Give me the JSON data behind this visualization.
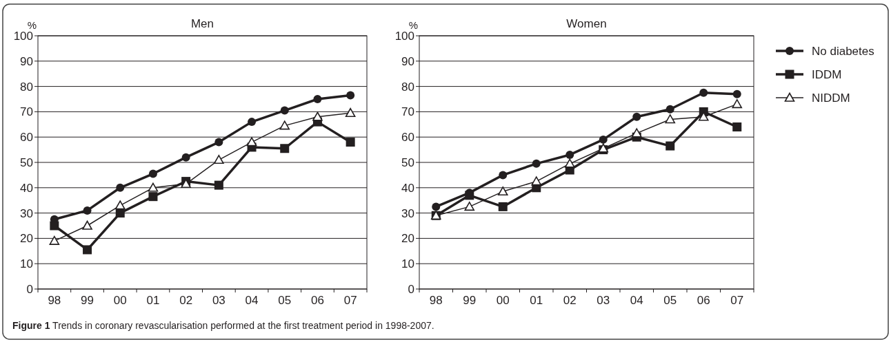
{
  "chart_data": [
    {
      "type": "line",
      "title": "Men",
      "ylabel": "%",
      "categories": [
        "98",
        "99",
        "00",
        "01",
        "02",
        "03",
        "04",
        "05",
        "06",
        "07"
      ],
      "ylim": [
        0,
        100
      ],
      "yticks": [
        0,
        10,
        20,
        30,
        40,
        50,
        60,
        70,
        80,
        90,
        100
      ],
      "grid": "y",
      "legend": false,
      "series": [
        {
          "color": "#231f20",
          "marker": "circle",
          "values": [
            27.5,
            31,
            40,
            45.5,
            52,
            58,
            66,
            70.5,
            75,
            76.5
          ]
        },
        {
          "color": "#231f20",
          "marker": "square",
          "values": [
            25,
            15.5,
            30,
            36.5,
            42.5,
            41,
            56,
            55.5,
            66,
            58
          ]
        },
        {
          "color": "#231f20",
          "marker": "triangle",
          "values": [
            19,
            25,
            33,
            40,
            41.5,
            51,
            58,
            64.5,
            68,
            69.5
          ]
        }
      ],
      "annotations": [
        "Figure 1 Trends in coronary revascularisation performed at the first treatment period in 1998-2007."
      ]
    },
    {
      "type": "line",
      "title": "Women",
      "ylabel": "%",
      "categories": [
        "98",
        "99",
        "00",
        "01",
        "02",
        "03",
        "04",
        "05",
        "06",
        "07"
      ],
      "ylim": [
        0,
        100
      ],
      "yticks": [
        0,
        10,
        20,
        30,
        40,
        50,
        60,
        70,
        80,
        90,
        100
      ],
      "grid": "y",
      "legend": "right",
      "series": [
        {
          "name": "No diabetes",
          "color": "#231f20",
          "marker": "circle",
          "values": [
            32.5,
            38,
            45,
            49.5,
            53,
            59,
            68,
            71,
            77.5,
            77
          ]
        },
        {
          "name": "IDDM",
          "color": "#231f20",
          "marker": "square",
          "values": [
            29,
            37,
            32.5,
            40,
            47,
            55,
            60,
            56.5,
            70,
            64
          ]
        },
        {
          "name": "NIDDM",
          "color": "#231f20",
          "marker": "triangle",
          "values": [
            29,
            32.5,
            38.5,
            42.5,
            49.5,
            55.5,
            61.5,
            67,
            68,
            73
          ]
        }
      ]
    }
  ]
}
